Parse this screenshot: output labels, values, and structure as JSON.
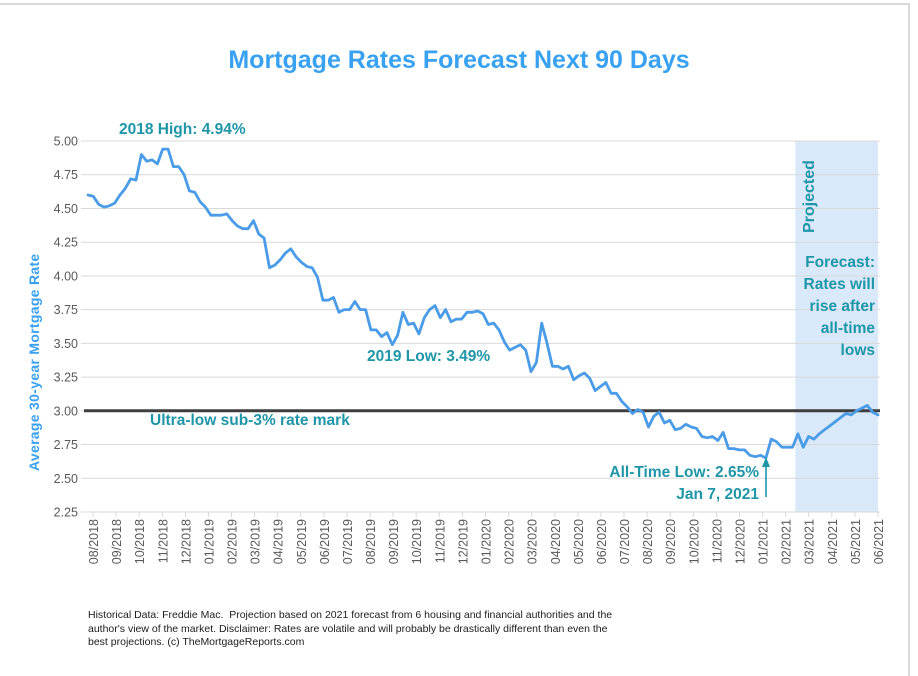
{
  "title": "Mortgage Rates Forecast Next 90 Days",
  "y_axis_title": "Average 30-year Mortgage Rate",
  "annotations": {
    "high_2018": "2018 High: 4.94%",
    "low_2019": "2019 Low: 3.49%",
    "sub3_label": "Ultra-low sub-3% rate mark",
    "all_time_low": "All-Time Low: 2.65%",
    "all_time_low_date": "Jan 7, 2021",
    "projected_label": "Projected",
    "forecast_note": "Forecast:\nRates will\nrise after\nall-time\nlows"
  },
  "footer": "Historical Data: Freddie Mac.  Projection based on 2021 forecast from 6 housing and financial authorities and the author's view of the market. Disclaimer: Rates are volatile and will probably be drastically different than even the best projections. (c) TheMortgageReports.com",
  "colors": {
    "accent_blue": "#38a1f2",
    "line_blue": "#4a9be8",
    "teal": "#1f96a8",
    "band": "#d9e9f9",
    "grid": "#d9d9d9",
    "tick_text": "#595959",
    "ref_line": "#3f3f3f"
  },
  "chart_data": {
    "type": "line",
    "title": "Mortgage Rates Forecast Next 90 Days",
    "xlabel": "",
    "ylabel": "Average 30-year Mortgage Rate",
    "ylim": [
      2.25,
      5.0
    ],
    "grid": true,
    "legend": "none",
    "y_ticks": [
      5.0,
      4.75,
      4.5,
      4.25,
      4.0,
      3.75,
      3.5,
      3.25,
      3.0,
      2.75,
      2.5,
      2.25
    ],
    "x_tick_labels": [
      "08/2018",
      "09/2018",
      "10/2018",
      "11/2018",
      "12/2018",
      "01/2019",
      "02/2019",
      "03/2019",
      "04/2019",
      "05/2019",
      "06/2019",
      "07/2019",
      "08/2019",
      "09/2019",
      "10/2019",
      "11/2019",
      "12/2019",
      "01/2020",
      "02/2020",
      "03/2020",
      "04/2020",
      "05/2020",
      "06/2020",
      "07/2020",
      "08/2020",
      "09/2020",
      "10/2020",
      "11/2020",
      "12/2020",
      "01/2021",
      "02/2021",
      "03/2021",
      "04/2021",
      "05/2021",
      "06/2021"
    ],
    "reference_line": {
      "value": 3.0,
      "label": "Ultra-low sub-3% rate mark"
    },
    "projection_band": {
      "label": "Projected",
      "from_label": "02/2021",
      "to_label": "06/2021",
      "note": "Forecast: Rates will rise after all-time lows"
    },
    "key_points": [
      {
        "label": "2018 High",
        "value": 4.94
      },
      {
        "label": "2019 Low",
        "value": 3.49
      },
      {
        "label": "All-Time Low",
        "value": 2.65,
        "date": "Jan 7, 2021"
      }
    ],
    "series": [
      {
        "name": "Historical weekly average 30-year fixed rate (Freddie Mac)",
        "values": [
          4.6,
          4.59,
          4.53,
          4.51,
          4.52,
          4.54,
          4.6,
          4.65,
          4.72,
          4.71,
          4.9,
          4.85,
          4.86,
          4.83,
          4.94,
          4.94,
          4.81,
          4.81,
          4.75,
          4.63,
          4.62,
          4.55,
          4.51,
          4.45,
          4.45,
          4.45,
          4.46,
          4.41,
          4.37,
          4.35,
          4.35,
          4.41,
          4.31,
          4.28,
          4.06,
          4.08,
          4.12,
          4.17,
          4.2,
          4.14,
          4.1,
          4.07,
          4.06,
          3.99,
          3.82,
          3.82,
          3.84,
          3.73,
          3.75,
          3.75,
          3.81,
          3.75,
          3.75,
          3.6,
          3.6,
          3.55,
          3.58,
          3.49,
          3.56,
          3.73,
          3.64,
          3.65,
          3.57,
          3.69,
          3.75,
          3.78,
          3.69,
          3.75,
          3.66,
          3.68,
          3.68,
          3.73,
          3.73,
          3.74,
          3.72,
          3.64,
          3.65,
          3.6,
          3.51,
          3.45,
          3.47,
          3.49,
          3.45,
          3.29,
          3.36,
          3.65,
          3.5,
          3.33,
          3.33,
          3.31,
          3.33,
          3.23,
          3.26,
          3.28,
          3.24,
          3.15,
          3.18,
          3.21,
          3.13,
          3.13,
          3.07,
          3.03,
          2.98,
          3.01,
          2.99,
          2.88,
          2.96,
          2.99,
          2.91,
          2.93,
          2.86,
          2.87,
          2.9,
          2.88,
          2.87,
          2.81,
          2.8,
          2.81,
          2.78,
          2.84,
          2.72,
          2.72,
          2.71,
          2.71,
          2.67,
          2.66,
          2.67,
          2.65,
          2.79,
          2.77,
          2.73,
          2.73,
          2.73
        ]
      },
      {
        "name": "Projected (next 90 days)",
        "values": [
          2.83,
          2.73,
          2.81,
          2.79,
          2.83,
          2.86,
          2.89,
          2.92,
          2.95,
          2.98,
          2.97,
          3.0,
          3.02,
          3.04,
          2.99,
          2.97
        ]
      }
    ]
  }
}
